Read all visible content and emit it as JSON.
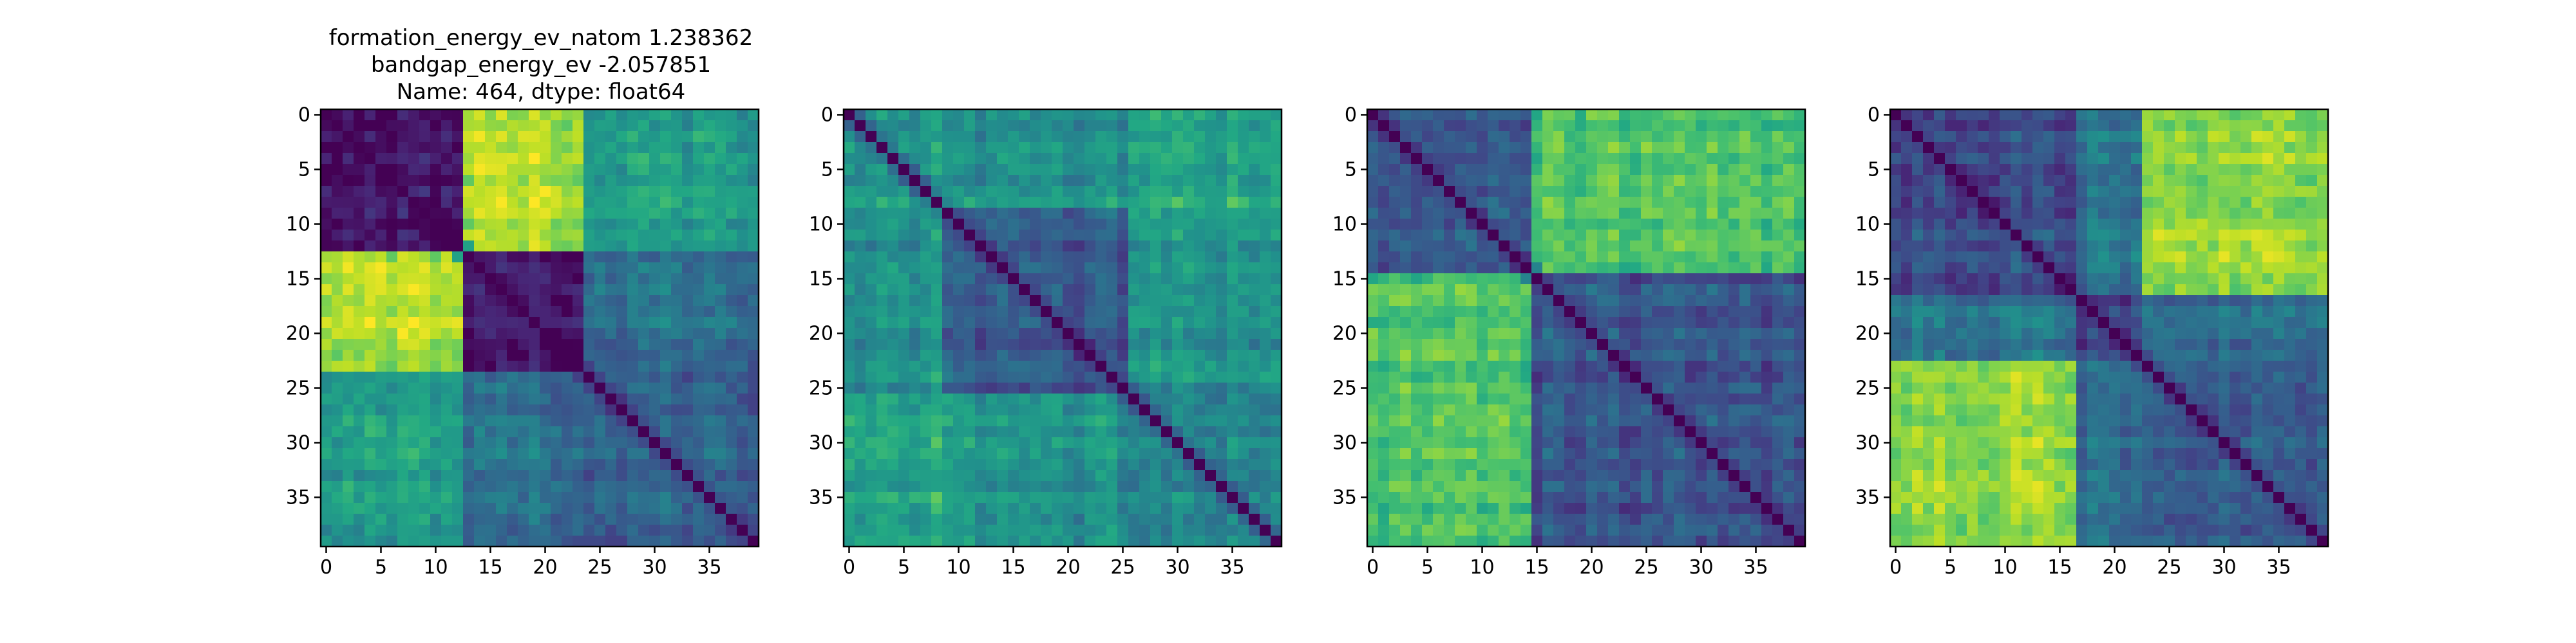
{
  "figure_title": {
    "lines": [
      "formation_energy_ev_natom    1.238362",
      "bandgap_energy_ev           -2.057851",
      "Name: 464, dtype: float64"
    ]
  },
  "chart_data": [
    {
      "type": "heatmap",
      "title": "",
      "xlabel": "",
      "ylabel": "",
      "grid": false,
      "colormap": "viridis",
      "size": 40,
      "x_ticks": [
        0,
        5,
        10,
        15,
        20,
        25,
        30,
        35
      ],
      "y_ticks": [
        0,
        5,
        10,
        15,
        20,
        25,
        30,
        35
      ],
      "xlim": [
        -0.5,
        39.5
      ],
      "ylim": [
        39.5,
        -0.5
      ],
      "blocks": [
        13,
        24
      ],
      "block_levels": [
        [
          0.05,
          0.88,
          0.55
        ],
        [
          0.88,
          0.05,
          0.35
        ],
        [
          0.55,
          0.35,
          0.3
        ]
      ]
    },
    {
      "type": "heatmap",
      "title": "",
      "xlabel": "",
      "ylabel": "",
      "grid": false,
      "colormap": "viridis",
      "size": 40,
      "x_ticks": [
        0,
        5,
        10,
        15,
        20,
        25,
        30,
        35
      ],
      "y_ticks": [
        0,
        5,
        10,
        15,
        20,
        25,
        30,
        35
      ],
      "xlim": [
        -0.5,
        39.5
      ],
      "ylim": [
        39.5,
        -0.5
      ],
      "blocks": [
        9,
        26
      ],
      "block_levels": [
        [
          0.55,
          0.5,
          0.6
        ],
        [
          0.5,
          0.25,
          0.5
        ],
        [
          0.6,
          0.5,
          0.45
        ]
      ]
    },
    {
      "type": "heatmap",
      "title": "",
      "xlabel": "",
      "ylabel": "",
      "grid": false,
      "colormap": "viridis",
      "size": 40,
      "x_ticks": [
        0,
        5,
        10,
        15,
        20,
        25,
        30,
        35
      ],
      "y_ticks": [
        0,
        5,
        10,
        15,
        20,
        25,
        30,
        35
      ],
      "xlim": [
        -0.5,
        39.5
      ],
      "ylim": [
        39.5,
        -0.5
      ],
      "blocks": [
        15
      ],
      "block_levels": [
        [
          0.25,
          0.7
        ],
        [
          0.7,
          0.25
        ]
      ]
    },
    {
      "type": "heatmap",
      "title": "",
      "xlabel": "",
      "ylabel": "",
      "grid": false,
      "colormap": "viridis",
      "size": 40,
      "x_ticks": [
        0,
        5,
        10,
        15,
        20,
        25,
        30,
        35
      ],
      "y_ticks": [
        0,
        5,
        10,
        15,
        20,
        25,
        30,
        35
      ],
      "xlim": [
        -0.5,
        39.5
      ],
      "ylim": [
        39.5,
        -0.5
      ],
      "blocks": [
        17,
        23
      ],
      "block_levels": [
        [
          0.25,
          0.4,
          0.85
        ],
        [
          0.4,
          0.2,
          0.35
        ],
        [
          0.85,
          0.35,
          0.3
        ]
      ]
    }
  ]
}
